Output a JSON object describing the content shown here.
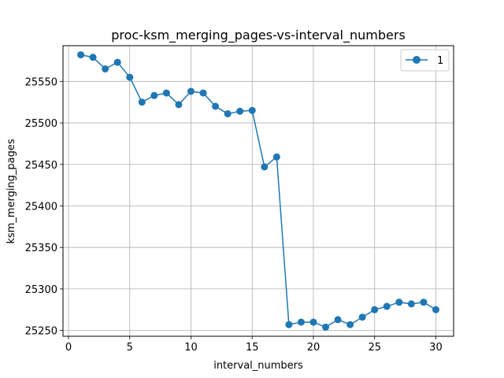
{
  "chart_data": {
    "type": "line",
    "title": "proc-ksm_merging_pages-vs-interval_numbers",
    "xlabel": "interval_numbers",
    "ylabel": "ksm_merging_pages",
    "xlim": [
      -0.45,
      31.45
    ],
    "ylim": [
      25243,
      25593
    ],
    "xticks": [
      0,
      5,
      10,
      15,
      20,
      25,
      30
    ],
    "yticks": [
      25250,
      25300,
      25350,
      25400,
      25450,
      25500,
      25550
    ],
    "grid": true,
    "legend_position": "top-right",
    "series": [
      {
        "name": "1",
        "color": "#1f77b4",
        "marker": "circle",
        "x": [
          1,
          2,
          3,
          4,
          5,
          6,
          7,
          8,
          9,
          10,
          11,
          12,
          13,
          14,
          15,
          16,
          17,
          18,
          19,
          20,
          21,
          22,
          23,
          24,
          25,
          26,
          27,
          28,
          29,
          30
        ],
        "y": [
          25582,
          25579,
          25565,
          25573,
          25555,
          25525,
          25533,
          25536,
          25522,
          25538,
          25536,
          25520,
          25511,
          25514,
          25515,
          25447,
          25459,
          25257,
          25260,
          25260,
          25254,
          25263,
          25257,
          25266,
          25275,
          25279,
          25284,
          25282,
          25284,
          25275
        ]
      }
    ]
  }
}
